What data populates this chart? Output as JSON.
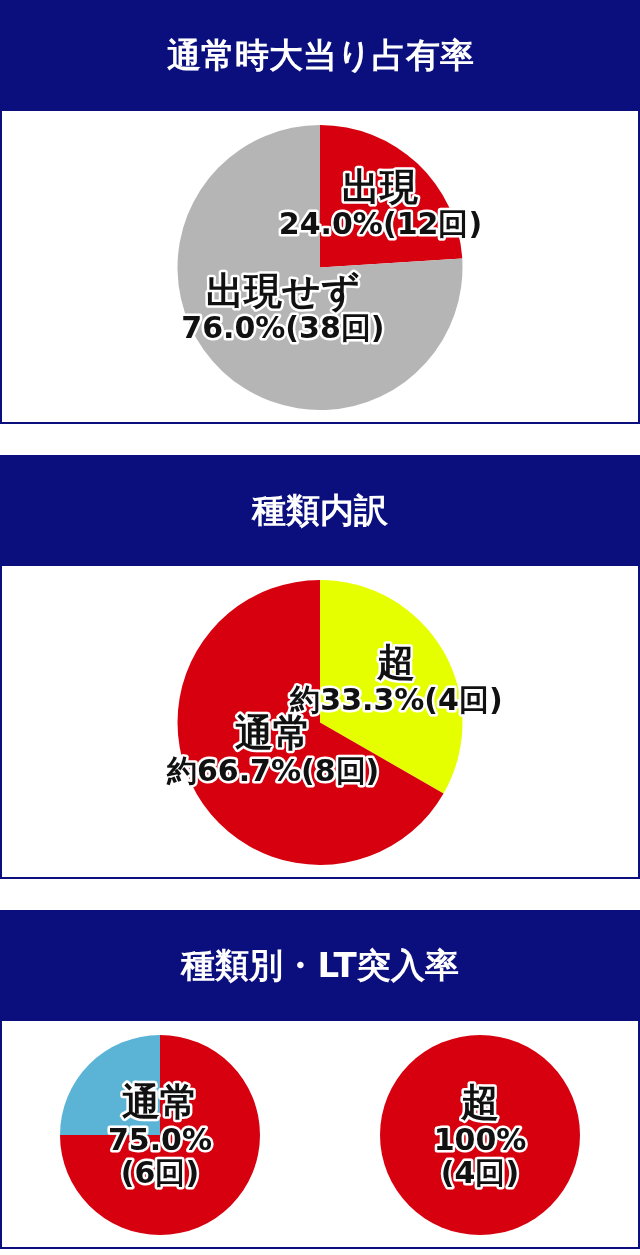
{
  "chart_data": [
    {
      "type": "pie",
      "title": "通常時大当り占有率",
      "categories": [
        "出現",
        "出現せず"
      ],
      "values": [
        24.0,
        76.0
      ],
      "colors": [
        "#d7000f",
        "#b5b5b6"
      ],
      "value_labels": [
        "24.0%(12回)",
        "76.0%(38回)"
      ]
    },
    {
      "type": "pie",
      "title": "種類内訳",
      "categories": [
        "超",
        "通常"
      ],
      "values": [
        33.3,
        66.7
      ],
      "colors": [
        "#e5ff00",
        "#d7000f"
      ],
      "value_labels": [
        "約33.3%(4回)",
        "約66.7%(8回)"
      ]
    },
    {
      "type": "pie",
      "title": "種類別・LT突入率",
      "categories": [
        "通常",
        null
      ],
      "values": [
        75.0,
        25.0
      ],
      "colors": [
        "#d7000f",
        "#5bb3d6"
      ],
      "value_labels": [
        "75.0%\n(6回)",
        null
      ]
    },
    {
      "type": "pie",
      "categories": [
        "超"
      ],
      "values": [
        100
      ],
      "colors": [
        "#d7000f"
      ],
      "value_labels": [
        "100%\n(4回)"
      ]
    }
  ]
}
